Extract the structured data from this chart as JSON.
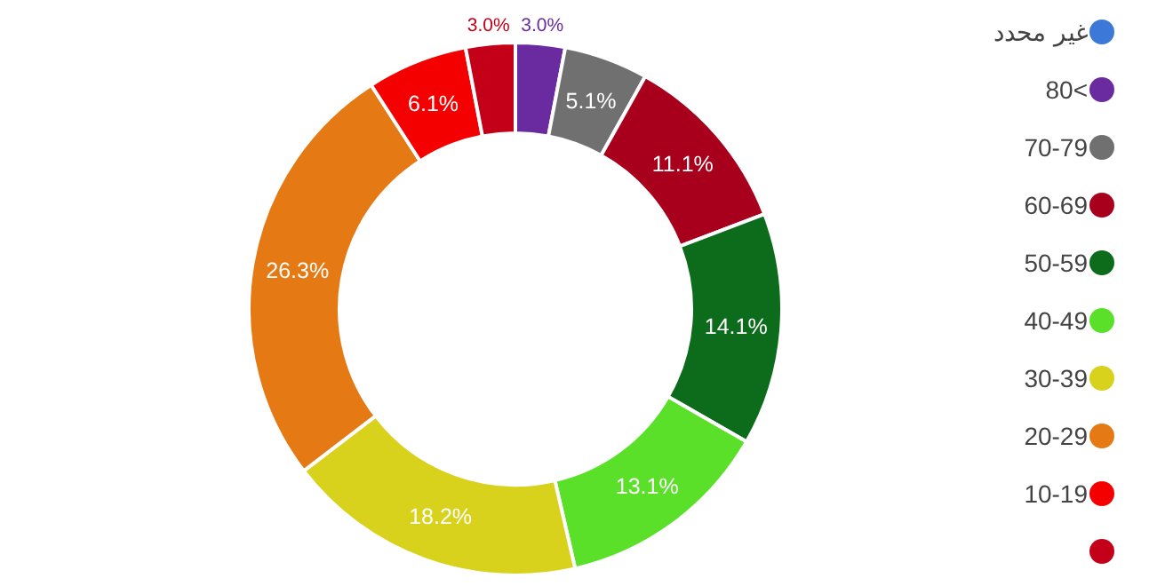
{
  "chart_data": {
    "type": "donut",
    "categories": [
      "غير محدد",
      "80<",
      "70-79",
      "60-69",
      "50-59",
      "40-49",
      "30-39",
      "20-29",
      "10-19",
      null
    ],
    "values": [
      0,
      3.0,
      5.1,
      11.1,
      14.1,
      13.1,
      18.2,
      26.3,
      6.1,
      3.0
    ],
    "value_labels": [
      null,
      "3.0%",
      "5.1%",
      "11.1%",
      "14.1%",
      "13.1%",
      "18.2%",
      "26.3%",
      "6.1%",
      "3.0%"
    ],
    "colors": [
      "#3c78d8",
      "#6a2aa0",
      "#707070",
      "#a8001c",
      "#0d6b1c",
      "#5be02a",
      "#d8d21c",
      "#e57a14",
      "#f50000",
      "#c40018"
    ],
    "legend": "right"
  }
}
